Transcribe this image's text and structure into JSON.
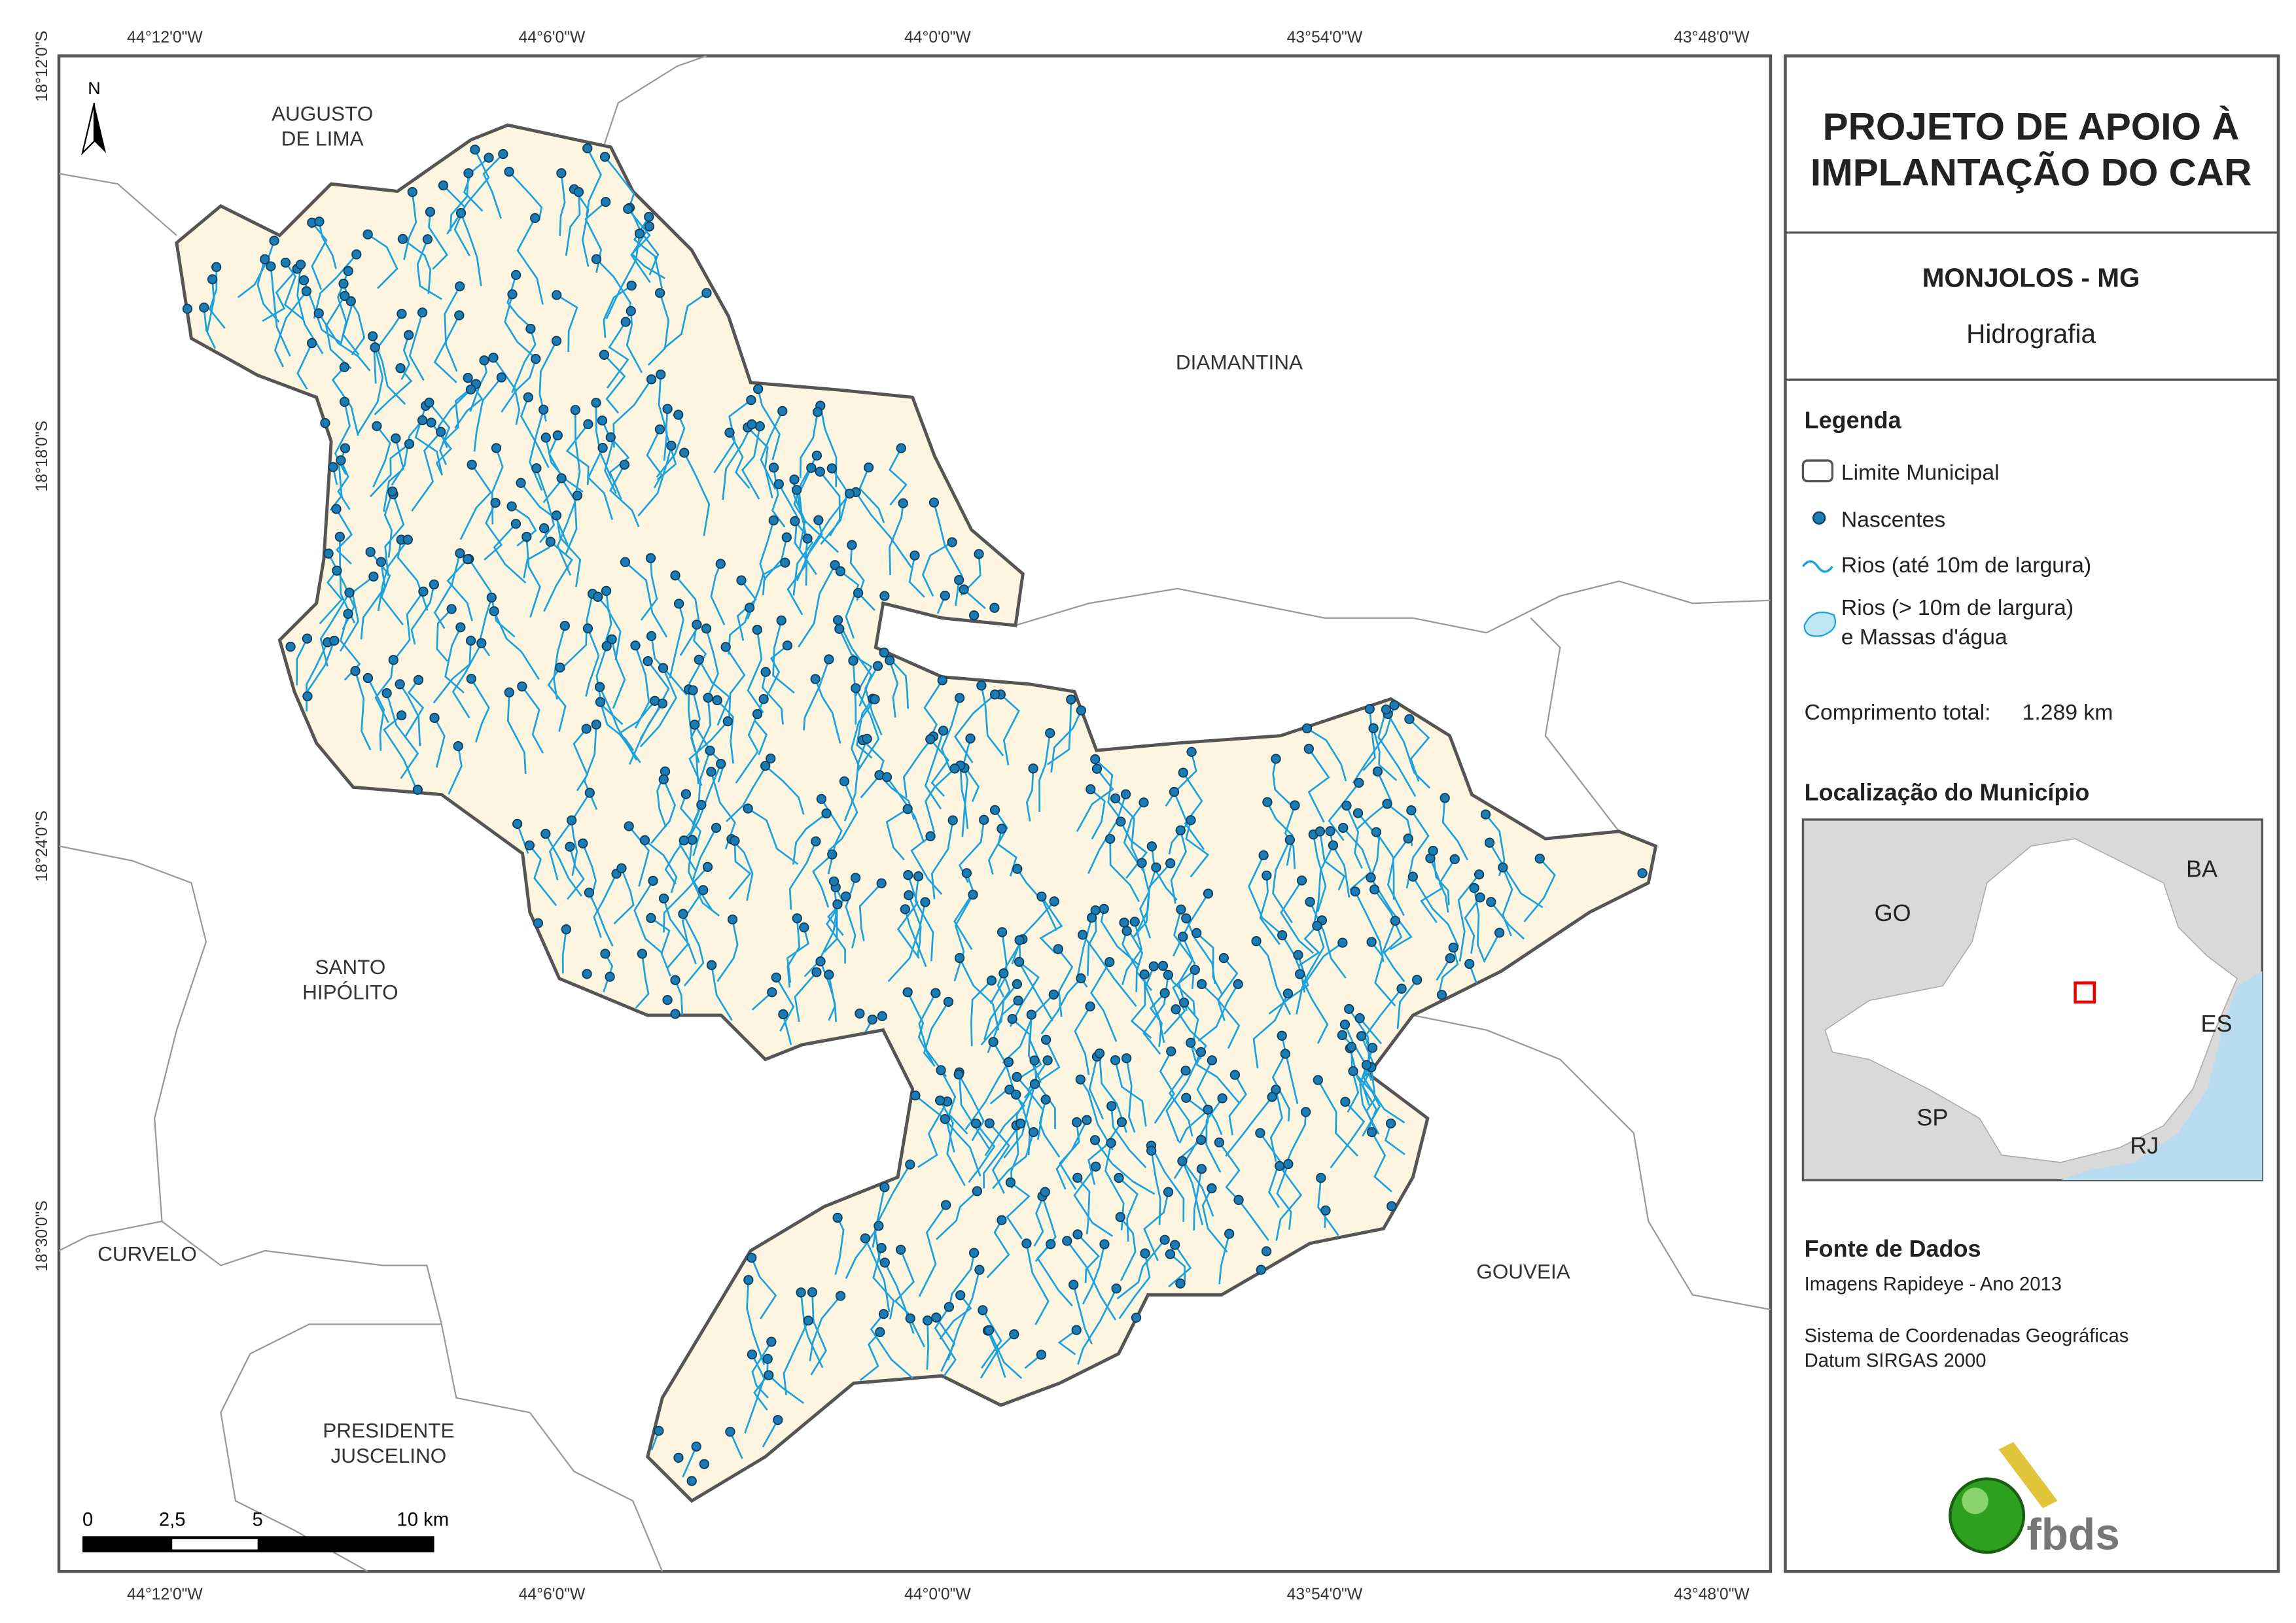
{
  "map": {
    "longitude_labels": [
      "44°12'0\"W",
      "44°6'0\"W",
      "44°0'0\"W",
      "43°54'0\"W",
      "43°48'0\"W"
    ],
    "latitude_labels": [
      "18°12'0\"S",
      "18°18'0\"S",
      "18°24'0\"S",
      "18°30'0\"S"
    ],
    "place_names": [
      [
        "AUGUSTO",
        "DE LIMA"
      ],
      [
        "DIAMANTINA"
      ],
      [
        "SANTO",
        "HIPÓLITO"
      ],
      [
        "CURVELO"
      ],
      [
        "GOUVEIA"
      ],
      [
        "PRESIDENTE",
        "JUSCELINO"
      ]
    ],
    "north_label": "N",
    "scale_labels": [
      "0",
      "2,5",
      "5",
      "10 km"
    ]
  },
  "panel": {
    "title": [
      "PROJETO DE APOIO À",
      "IMPLANTAÇÃO DO CAR"
    ],
    "subtitle": "MONJOLOS - MG",
    "theme": "Hidrografia",
    "legend": {
      "title": "Legenda",
      "items": [
        [
          "Limite Municipal"
        ],
        [
          "Nascentes"
        ],
        [
          "Rios (até 10m de largura)"
        ],
        [
          "Rios (> 10m de largura)",
          "e Massas d'água"
        ]
      ]
    },
    "total_length": {
      "label": "Comprimento total:",
      "value": "1.289 km"
    },
    "location": {
      "title": "Localização do Município",
      "states": [
        "GO",
        "BA",
        "ES",
        "SP",
        "RJ"
      ]
    },
    "sources": {
      "title": "Fonte de Dados",
      "lines": [
        "Imagens Rapideye - Ano 2013",
        "Sistema de Coordenadas Geográficas",
        "Datum SIRGAS 2000"
      ]
    },
    "logo": "fbds"
  }
}
